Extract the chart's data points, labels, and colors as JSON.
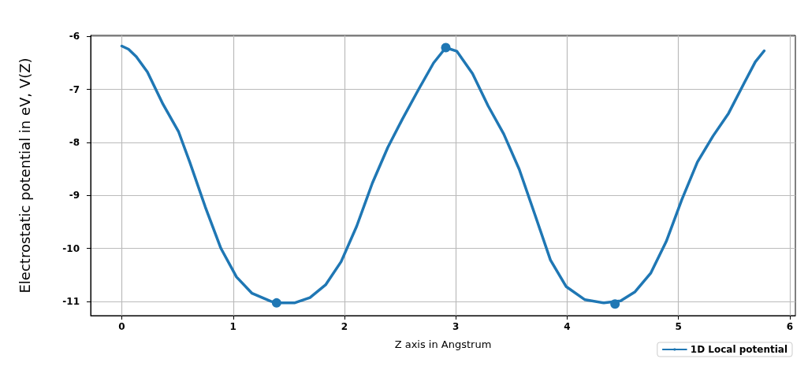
{
  "chart_data": {
    "type": "line",
    "xlabel": "Z axis in Angstrum",
    "ylabel": "Electrostatic potential in eV, V(Z)",
    "xlim": [
      -0.28,
      6.05
    ],
    "ylim": [
      -11.27,
      -5.98
    ],
    "xticks": [
      0,
      1,
      2,
      3,
      4,
      5,
      6
    ],
    "yticks": [
      -11,
      -10,
      -9,
      -8,
      -7,
      -6
    ],
    "grid": true,
    "legend": "bottom right",
    "series": [
      {
        "name": "1D Local potential",
        "marker": "none",
        "color": "#1f77b4",
        "x": [
          0,
          0.06,
          0.13,
          0.23,
          0.37,
          0.51,
          0.61,
          0.75,
          0.89,
          1.03,
          1.17,
          1.34,
          1.39,
          1.55,
          1.69,
          1.83,
          1.97,
          2.11,
          2.25,
          2.39,
          2.52,
          2.66,
          2.8,
          2.91,
          3.01,
          3.15,
          3.29,
          3.43,
          3.57,
          3.71,
          3.85,
          3.99,
          4.16,
          4.33,
          4.48,
          4.61,
          4.75,
          4.89,
          5.03,
          5.17,
          5.31,
          5.45,
          5.59,
          5.69,
          5.77
        ],
        "values": [
          -6.18,
          -6.24,
          -6.38,
          -6.67,
          -7.28,
          -7.8,
          -8.37,
          -9.22,
          -10.0,
          -10.54,
          -10.85,
          -11.0,
          -11.03,
          -11.03,
          -10.93,
          -10.69,
          -10.25,
          -9.58,
          -8.77,
          -8.09,
          -7.56,
          -7.02,
          -6.5,
          -6.21,
          -6.28,
          -6.7,
          -7.31,
          -7.84,
          -8.51,
          -9.36,
          -10.22,
          -10.72,
          -10.97,
          -11.03,
          -10.99,
          -10.82,
          -10.47,
          -9.87,
          -9.08,
          -8.37,
          -7.88,
          -7.45,
          -6.88,
          -6.48,
          -6.27
        ]
      },
      {
        "type": "scatter",
        "marker": "circle",
        "color": "#1f77b4",
        "x": [
          1.39,
          2.91,
          4.43
        ],
        "values": [
          -11.03,
          -6.21,
          -11.05
        ]
      }
    ]
  }
}
